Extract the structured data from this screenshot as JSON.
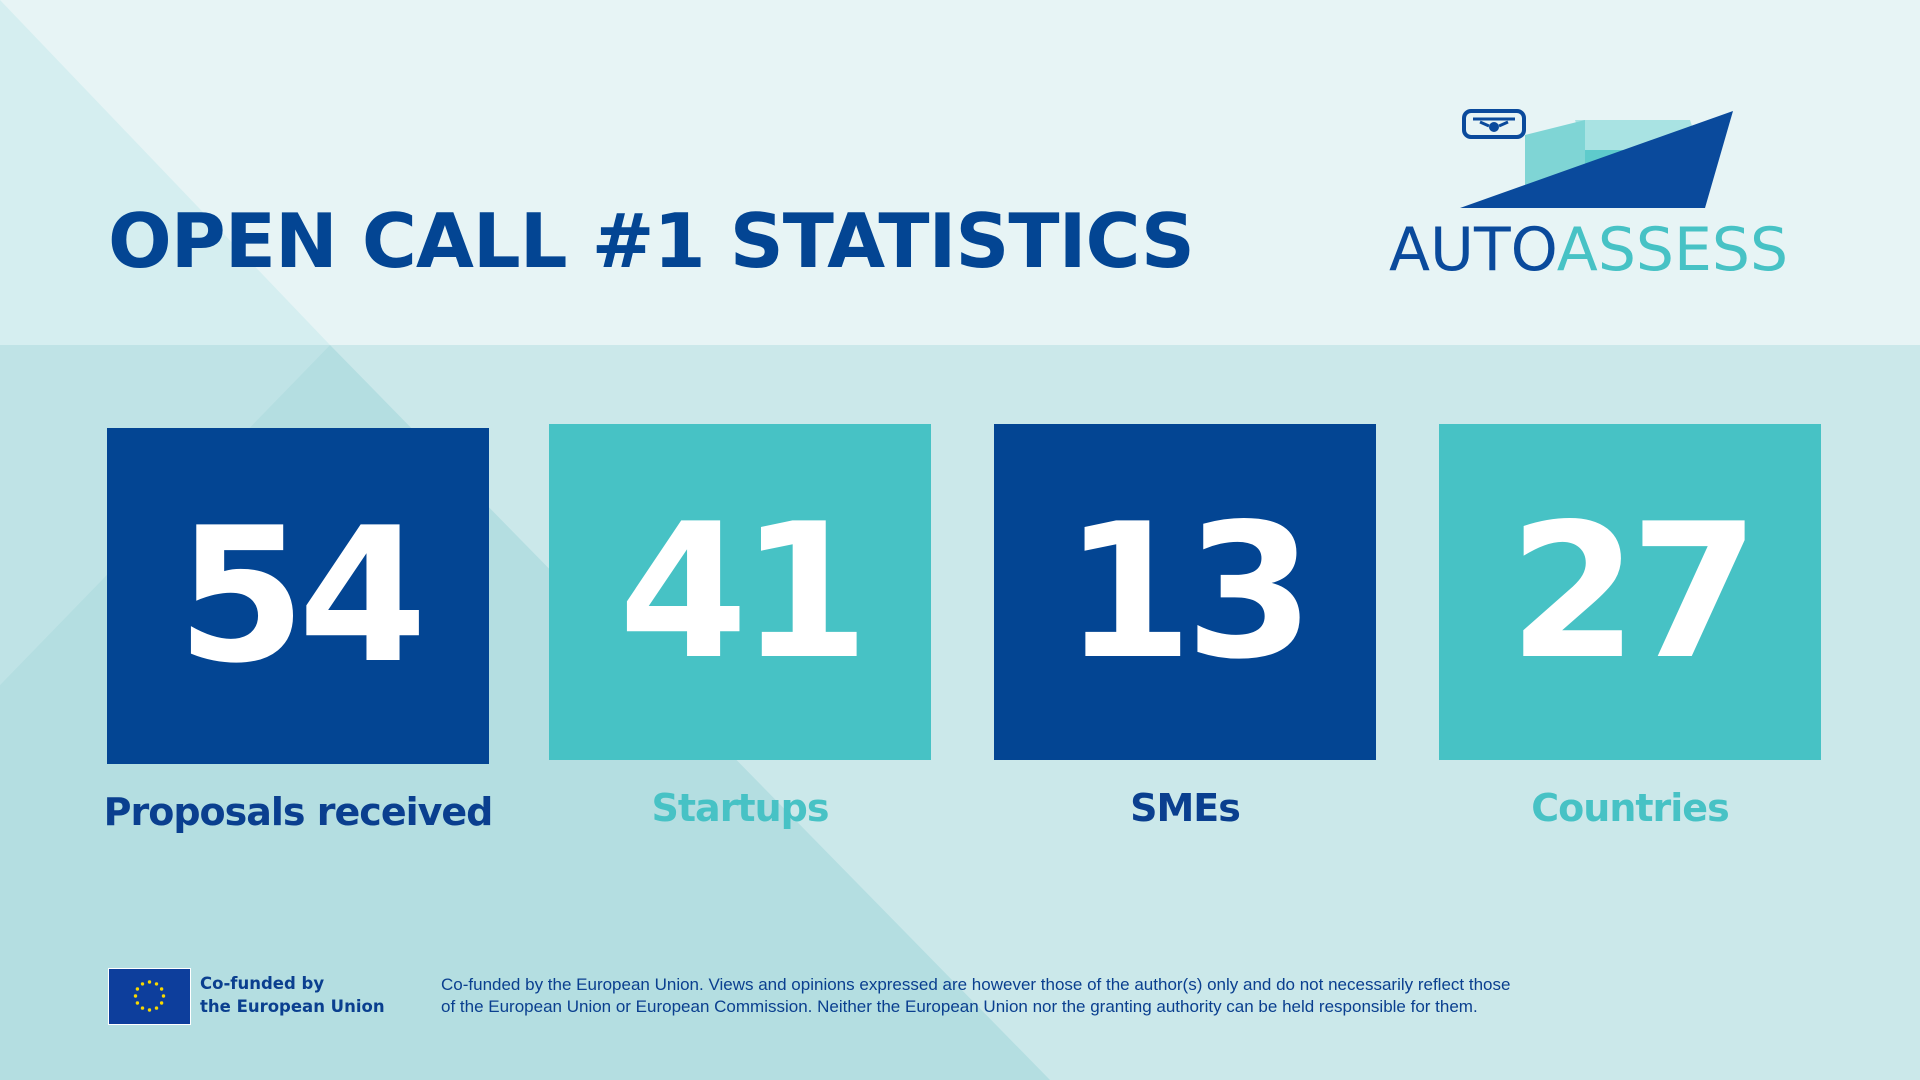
{
  "header": {
    "title": "OPEN CALL #1 STATISTICS"
  },
  "logo": {
    "text_part1": "AUTO",
    "text_part2": "ASSESS",
    "icon": "drone-icon"
  },
  "stats": [
    {
      "value": "54",
      "label": "Proposals received",
      "box_color": "#034593",
      "label_color": "#0a3f8f"
    },
    {
      "value": "41",
      "label": "Startups",
      "box_color": "#47c2c5",
      "label_color": "#47c2c5"
    },
    {
      "value": "13",
      "label": "SMEs",
      "box_color": "#034593",
      "label_color": "#0a3f8f"
    },
    {
      "value": "27",
      "label": "Countries",
      "box_color": "#47c2c5",
      "label_color": "#47c2c5"
    }
  ],
  "footer": {
    "cofunded_line1": "Co-funded by",
    "cofunded_line2": "the European Union",
    "disclaimer_line1": "Co-funded by the European Union. Views and opinions expressed are however those of the author(s) only and do not necessarily reflect those",
    "disclaimer_line2": "of the European Union or European Commission. Neither the European Union nor the granting authority can be held responsible for them.",
    "flag_icon": "eu-flag-icon"
  },
  "colors": {
    "navy": "#034593",
    "teal": "#47c2c5",
    "background_light": "#e7f4f5",
    "background_mid": "#cbe8ea",
    "background_dark": "#b4dee1"
  }
}
